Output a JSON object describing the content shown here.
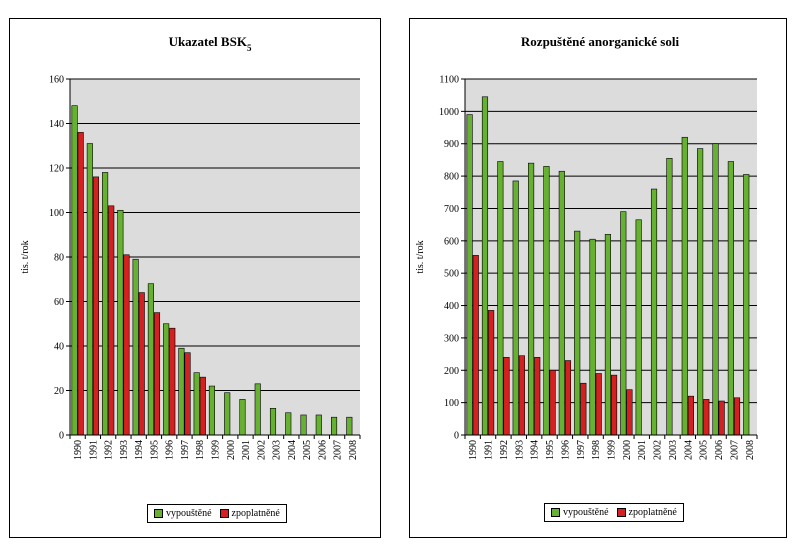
{
  "colors": {
    "emitted": "#66b032",
    "charged": "#d42020",
    "plot_bg": "#dcdcdc"
  },
  "chart_data": [
    {
      "type": "bar",
      "title": "Ukazatel BSK",
      "title_sub": "5",
      "ylabel": "tis. t/rok",
      "xlabel": "",
      "ylim": [
        0,
        160
      ],
      "ytick_step": 20,
      "grid": true,
      "legend_position": "bottom",
      "categories": [
        "1990",
        "1991",
        "1992",
        "1993",
        "1994",
        "1995",
        "1996",
        "1997",
        "1998",
        "1999",
        "2000",
        "2001",
        "2002",
        "2003",
        "2004",
        "2005",
        "2006",
        "2007",
        "2008"
      ],
      "series": [
        {
          "name": "vypouštěné",
          "values": [
            148,
            131,
            118,
            101,
            79,
            68,
            50,
            39,
            28,
            22,
            19,
            16,
            23,
            12,
            10,
            9,
            9,
            8,
            8
          ]
        },
        {
          "name": "zpoplatněné",
          "values": [
            136,
            116,
            103,
            81,
            64,
            55,
            48,
            37,
            26,
            null,
            null,
            null,
            null,
            null,
            null,
            null,
            null,
            null,
            null
          ]
        }
      ]
    },
    {
      "type": "bar",
      "title": "Rozpuštěné anorganické soli",
      "title_sub": "",
      "ylabel": "tis. t/rok",
      "xlabel": "",
      "ylim": [
        0,
        1100
      ],
      "ytick_step": 100,
      "grid": true,
      "legend_position": "bottom",
      "categories": [
        "1990",
        "1991",
        "1992",
        "1993",
        "1994",
        "1995",
        "1996",
        "1997",
        "1998",
        "1999",
        "2000",
        "2001",
        "2002",
        "2003",
        "2004",
        "2005",
        "2006",
        "2007",
        "2008"
      ],
      "series": [
        {
          "name": "vypouštěné",
          "values": [
            990,
            1045,
            845,
            785,
            840,
            830,
            815,
            630,
            605,
            620,
            690,
            665,
            760,
            855,
            920,
            885,
            900,
            845,
            805
          ]
        },
        {
          "name": "zpoplatněné",
          "values": [
            555,
            385,
            240,
            245,
            240,
            200,
            230,
            160,
            190,
            185,
            140,
            null,
            null,
            null,
            120,
            110,
            105,
            115,
            null
          ]
        }
      ]
    }
  ]
}
